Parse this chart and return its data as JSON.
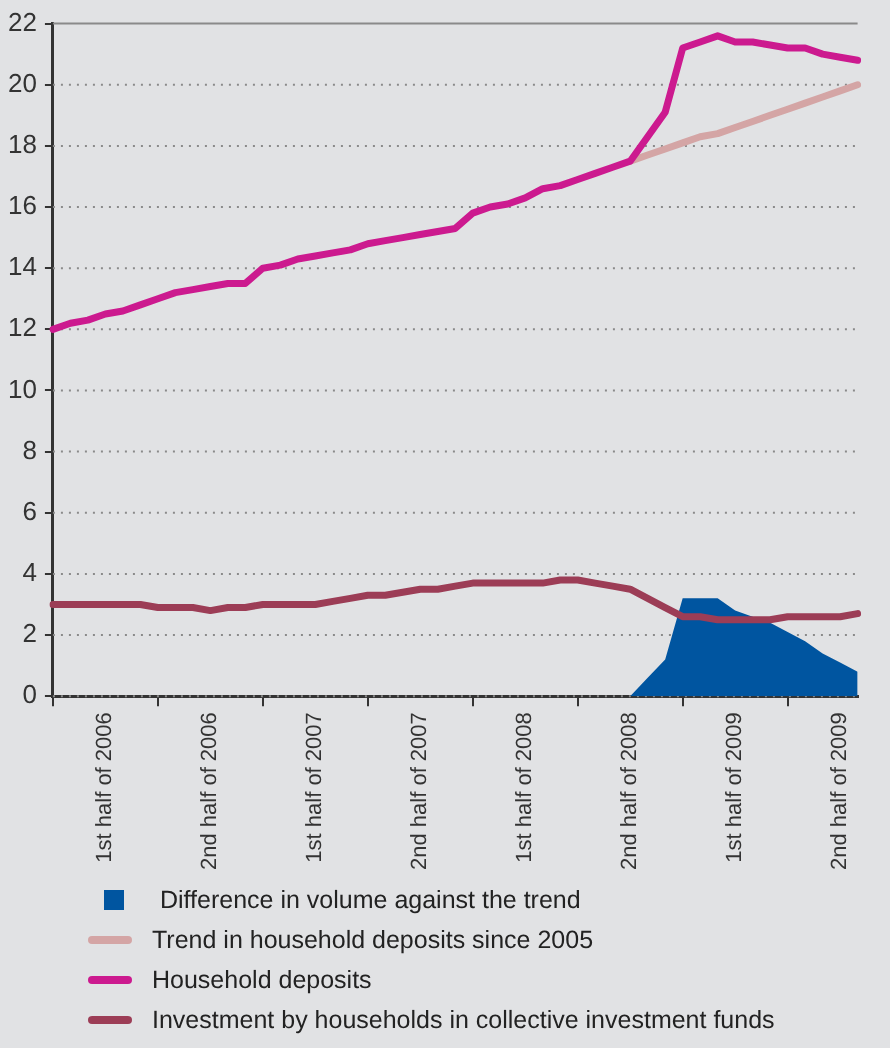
{
  "chart_data": {
    "type": "line",
    "categories": [
      null,
      null,
      null,
      "1st half of 2006",
      null,
      null,
      null,
      null,
      null,
      "2nd half of 2006",
      null,
      null,
      null,
      null,
      null,
      "1st half of 2007",
      null,
      null,
      null,
      null,
      null,
      "2nd half of 2007",
      null,
      null,
      null,
      null,
      null,
      "1st half of 2008",
      null,
      null,
      null,
      null,
      null,
      "2nd half of 2008",
      null,
      null,
      null,
      null,
      null,
      "1st half of 2009",
      null,
      null,
      null,
      null,
      null,
      "2nd half of 2009",
      null
    ],
    "series": [
      {
        "name": "Difference in volume against the trend",
        "type": "area",
        "color": "#0055a0",
        "values": [
          null,
          null,
          null,
          null,
          null,
          null,
          null,
          null,
          null,
          null,
          null,
          null,
          null,
          null,
          null,
          null,
          null,
          null,
          null,
          null,
          null,
          null,
          null,
          null,
          null,
          null,
          null,
          null,
          null,
          null,
          null,
          null,
          null,
          0,
          0.6,
          1.2,
          3.2,
          3.2,
          3.2,
          2.8,
          2.6,
          2.4,
          2.1,
          1.8,
          1.4,
          1.1,
          0.8
        ]
      },
      {
        "name": "Trend in household deposits since 2005",
        "type": "line",
        "color": "#d4a5a5",
        "values": [
          null,
          null,
          null,
          null,
          null,
          null,
          null,
          null,
          null,
          null,
          null,
          null,
          null,
          null,
          null,
          null,
          null,
          null,
          null,
          null,
          null,
          null,
          null,
          null,
          null,
          null,
          null,
          null,
          null,
          null,
          null,
          null,
          null,
          17.5,
          17.7,
          17.9,
          18.1,
          18.3,
          18.4,
          18.6,
          18.8,
          19.0,
          19.2,
          19.4,
          19.6,
          19.8,
          20.0
        ]
      },
      {
        "name": "Household deposits",
        "type": "line",
        "color": "#cc1a8f",
        "values": [
          12.0,
          12.2,
          12.3,
          12.5,
          12.6,
          12.8,
          13.0,
          13.2,
          13.3,
          13.4,
          13.5,
          13.5,
          14.0,
          14.1,
          14.3,
          14.4,
          14.5,
          14.6,
          14.8,
          14.9,
          15.0,
          15.1,
          15.2,
          15.3,
          15.8,
          16.0,
          16.1,
          16.3,
          16.6,
          16.7,
          16.9,
          17.1,
          17.3,
          17.5,
          18.3,
          19.1,
          21.2,
          21.4,
          21.6,
          21.4,
          21.4,
          21.3,
          21.2,
          21.2,
          21.0,
          20.9,
          20.8
        ]
      },
      {
        "name": "Investment by households in collective investment funds",
        "type": "line",
        "color": "#9c3d56",
        "values": [
          3.0,
          3.0,
          3.0,
          3.0,
          3.0,
          3.0,
          2.9,
          2.9,
          2.9,
          2.8,
          2.9,
          2.9,
          3.0,
          3.0,
          3.0,
          3.0,
          3.1,
          3.2,
          3.3,
          3.3,
          3.4,
          3.5,
          3.5,
          3.6,
          3.7,
          3.7,
          3.7,
          3.7,
          3.7,
          3.8,
          3.8,
          3.7,
          3.6,
          3.5,
          3.2,
          2.9,
          2.6,
          2.6,
          2.5,
          2.5,
          2.5,
          2.5,
          2.6,
          2.6,
          2.6,
          2.6,
          2.7
        ]
      }
    ],
    "ylim": [
      0,
      22
    ],
    "yticks": [
      0,
      2,
      4,
      6,
      8,
      10,
      12,
      14,
      16,
      18,
      20,
      22
    ],
    "grid": "y",
    "legend": "bottom",
    "marker": "none",
    "line_style": "solid"
  }
}
